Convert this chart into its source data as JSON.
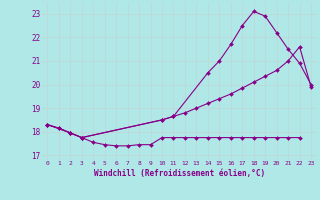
{
  "background_color": "#b0e8e8",
  "grid_color": "#c0d8d8",
  "line_color": "#880088",
  "marker_color": "#880088",
  "xlabel": "Windchill (Refroidissement éolien,°C)",
  "xlim": [
    -0.5,
    23.5
  ],
  "ylim": [
    16.8,
    23.5
  ],
  "yticks": [
    17,
    18,
    19,
    20,
    21,
    22,
    23
  ],
  "xticks": [
    0,
    1,
    2,
    3,
    4,
    5,
    6,
    7,
    8,
    9,
    10,
    11,
    12,
    13,
    14,
    15,
    16,
    17,
    18,
    19,
    20,
    21,
    22,
    23
  ],
  "series": [
    {
      "x": [
        0,
        1,
        2,
        3,
        4,
        5,
        6,
        7,
        8,
        9,
        10,
        11,
        12,
        13,
        14,
        15,
        16,
        17,
        18,
        19,
        20,
        21,
        22
      ],
      "y": [
        18.3,
        18.15,
        17.95,
        17.75,
        17.55,
        17.45,
        17.4,
        17.4,
        17.45,
        17.45,
        17.75,
        17.75,
        17.75,
        17.75,
        17.75,
        17.75,
        17.75,
        17.75,
        17.75,
        17.75,
        17.75,
        17.75,
        17.75
      ]
    },
    {
      "x": [
        0,
        1,
        2,
        3,
        10,
        11,
        12,
        13,
        14,
        15,
        16,
        17,
        18,
        19,
        20,
        21,
        22,
        23
      ],
      "y": [
        18.3,
        18.15,
        17.95,
        17.75,
        18.5,
        18.65,
        18.8,
        19.0,
        19.2,
        19.4,
        19.6,
        19.85,
        20.1,
        20.35,
        20.6,
        21.0,
        21.6,
        19.9
      ]
    },
    {
      "x": [
        0,
        2,
        3,
        10,
        11,
        14,
        15,
        16,
        17,
        18,
        19,
        20,
        21,
        22,
        23
      ],
      "y": [
        18.3,
        17.95,
        17.75,
        18.5,
        18.65,
        20.5,
        21.0,
        21.7,
        22.5,
        23.1,
        22.9,
        22.2,
        21.5,
        20.9,
        20.0
      ]
    }
  ]
}
